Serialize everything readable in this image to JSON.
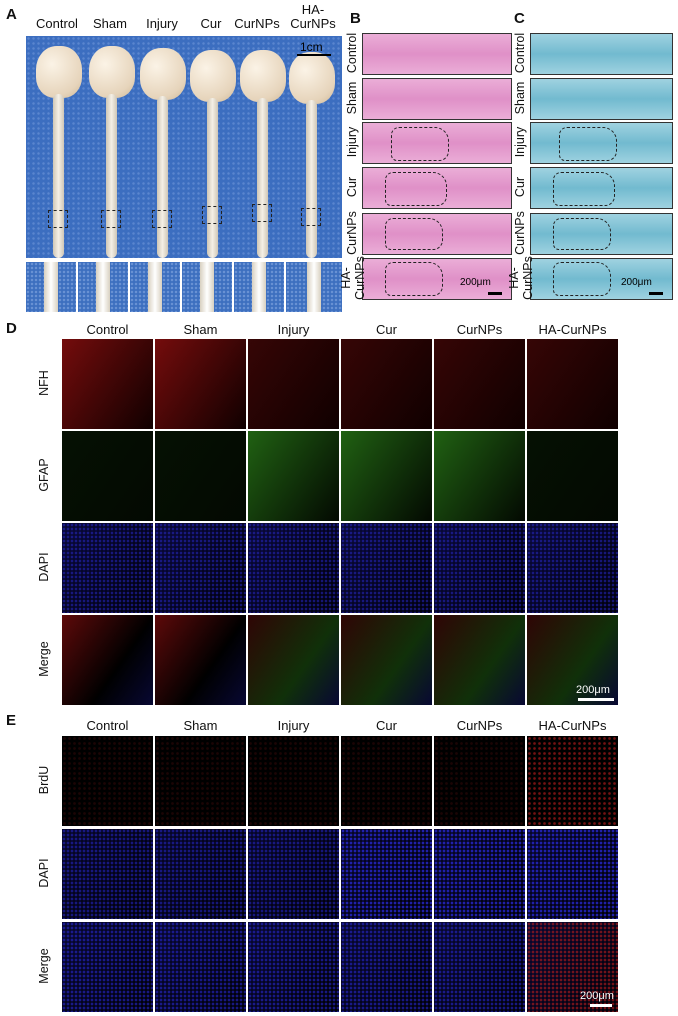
{
  "panels": {
    "A": "A",
    "B": "B",
    "C": "C",
    "D": "D",
    "E": "E"
  },
  "groups": [
    "Control",
    "Sham",
    "Injury",
    "Cur",
    "CurNPs",
    "HA-CurNPs"
  ],
  "panel_a": {
    "labels": [
      "Control",
      "Sham",
      "Injury",
      "Cur",
      "CurNPs",
      "HA-",
      "CurNPs"
    ],
    "scale": "1cm"
  },
  "panel_b": {
    "rows": [
      "Control",
      "Sham",
      "Injury",
      "Cur",
      "CurNPs",
      "HA-",
      "CurNPs"
    ],
    "scale": "200μm"
  },
  "panel_c": {
    "rows": [
      "Control",
      "Sham",
      "Injury",
      "Cur",
      "CurNPs",
      "HA-",
      "CurNPs"
    ],
    "scale": "200μm"
  },
  "panel_d": {
    "rows": [
      "NFH",
      "GFAP",
      "DAPI",
      "Merge"
    ],
    "scale": "200μm"
  },
  "panel_e": {
    "rows": [
      "BrdU",
      "DAPI",
      "Merge"
    ],
    "scale": "200μm"
  },
  "colors": {
    "he_pink": "#e79fd0",
    "lfb_blue": "#7fc3d6",
    "nfh_red": "#9b1010",
    "gfap_green": "#2e8a1a",
    "dapi_blue": "#1a1aa8",
    "photo_blue": "#3c6ec0"
  }
}
